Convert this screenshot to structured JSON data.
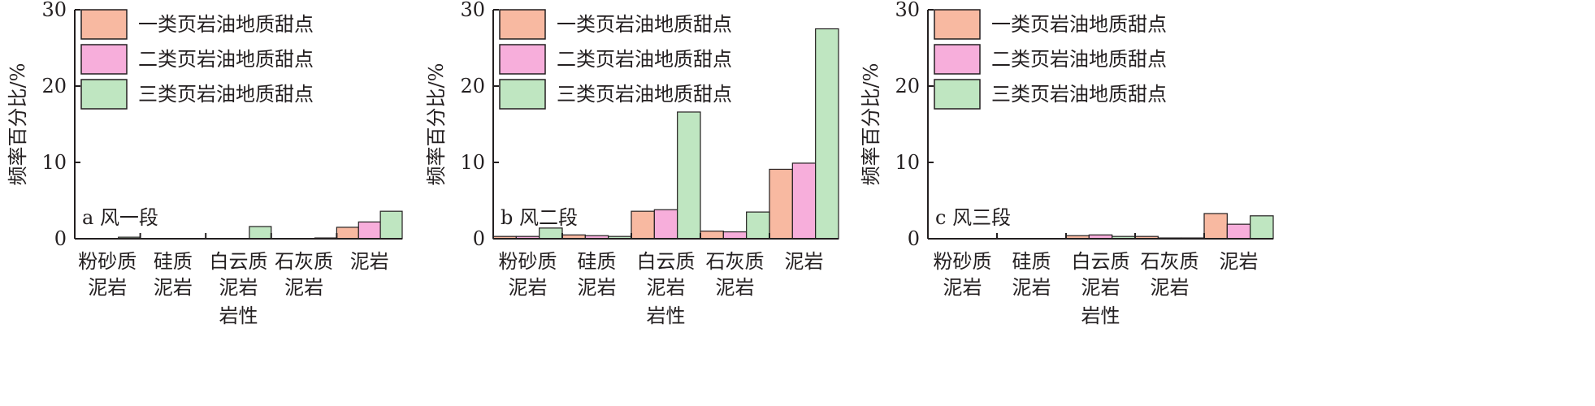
{
  "figure": {
    "colors": {
      "series_1": "#f8b9a1",
      "series_2": "#f7aedb",
      "series_3": "#bfe6c1",
      "bar_stroke": "#231f20",
      "axis": "#231f20"
    }
  },
  "chart_data": [
    {
      "type": "bar",
      "panel_label": "a 风一段",
      "xlabel": "岩性",
      "ylabel": "频率百分比/%",
      "ylim": [
        0,
        30
      ],
      "yticks": [
        "0",
        "10",
        "20",
        "30"
      ],
      "categories": [
        [
          "粉砂质",
          "泥岩"
        ],
        [
          "硅质",
          "泥岩"
        ],
        [
          "白云质",
          "泥岩"
        ],
        [
          "石灰质",
          "泥岩"
        ],
        [
          "泥岩"
        ]
      ],
      "legend": "top-left",
      "series": [
        {
          "name": "一类页岩油地质甜点",
          "values": [
            0,
            0,
            0,
            0,
            1.5
          ]
        },
        {
          "name": "二类页岩油地质甜点",
          "values": [
            0,
            0,
            0,
            0,
            2.2
          ]
        },
        {
          "name": "三类页岩油地质甜点",
          "values": [
            0.2,
            0,
            1.6,
            0.1,
            3.6
          ]
        }
      ]
    },
    {
      "type": "bar",
      "panel_label": "b 风二段",
      "xlabel": "岩性",
      "ylabel": "频率百分比/%",
      "ylim": [
        0,
        30
      ],
      "yticks": [
        "0",
        "10",
        "20",
        "30"
      ],
      "categories": [
        [
          "粉砂质",
          "泥岩"
        ],
        [
          "硅质",
          "泥岩"
        ],
        [
          "白云质",
          "泥岩"
        ],
        [
          "石灰质",
          "泥岩"
        ],
        [
          "泥岩"
        ]
      ],
      "legend": "top-left",
      "series": [
        {
          "name": "一类页岩油地质甜点",
          "values": [
            0.3,
            0.5,
            3.6,
            1.0,
            9.1
          ]
        },
        {
          "name": "二类页岩油地质甜点",
          "values": [
            0.3,
            0.4,
            3.8,
            0.9,
            9.9
          ]
        },
        {
          "name": "三类页岩油地质甜点",
          "values": [
            1.4,
            0.3,
            16.6,
            3.5,
            27.5
          ]
        }
      ]
    },
    {
      "type": "bar",
      "panel_label": "c 风三段",
      "xlabel": "岩性",
      "ylabel": "频率百分比/%",
      "ylim": [
        0,
        30
      ],
      "yticks": [
        "0",
        "10",
        "20",
        "30"
      ],
      "categories": [
        [
          "粉砂质",
          "泥岩"
        ],
        [
          "硅质",
          "泥岩"
        ],
        [
          "白云质",
          "泥岩"
        ],
        [
          "石灰质",
          "泥岩"
        ],
        [
          "泥岩"
        ]
      ],
      "legend": "top-left",
      "series": [
        {
          "name": "一类页岩油地质甜点",
          "values": [
            0,
            0,
            0.4,
            0.3,
            3.3
          ]
        },
        {
          "name": "二类页岩油地质甜点",
          "values": [
            0,
            0,
            0.5,
            0.1,
            1.9
          ]
        },
        {
          "name": "三类页岩油地质甜点",
          "values": [
            0,
            0,
            0.3,
            0.1,
            3.0
          ]
        }
      ]
    }
  ]
}
